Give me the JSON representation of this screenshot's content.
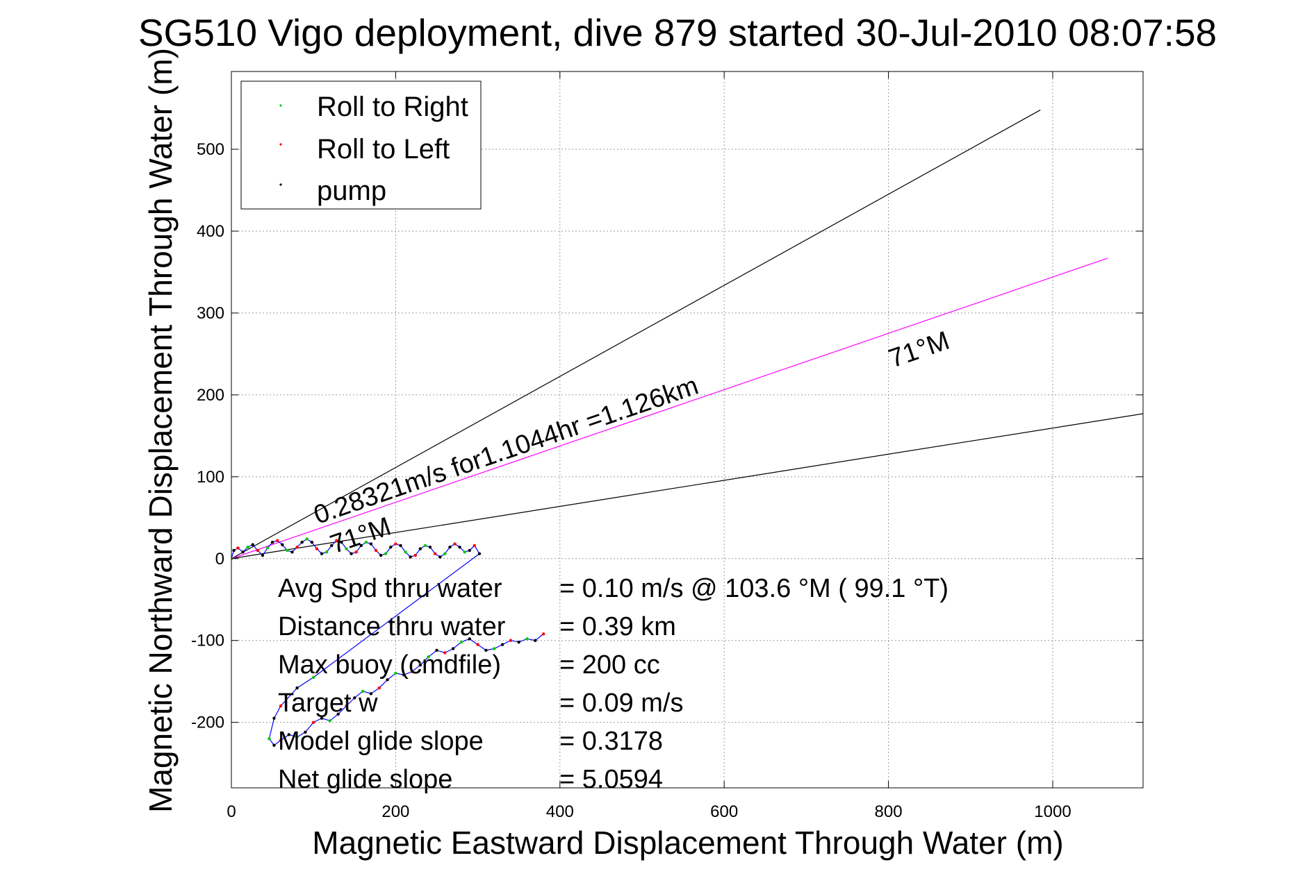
{
  "chart_data": {
    "type": "line",
    "title": "SG510 Vigo deployment, dive 879 started 30-Jul-2010 08:07:58",
    "xlabel": "Magnetic Eastward Displacement Through Water (m)",
    "ylabel": "Magnetic Northward Displacement Through Water (m)",
    "xlim": [
      0,
      1110
    ],
    "ylim": [
      -280,
      595
    ],
    "xticks": [
      0,
      200,
      400,
      600,
      800,
      1000
    ],
    "yticks": [
      -200,
      -100,
      0,
      100,
      200,
      300,
      400,
      500
    ],
    "grid": true,
    "legend": {
      "position": "top-left",
      "entries": [
        {
          "label": "Roll to Right",
          "color": "#00cc00"
        },
        {
          "label": "Roll to Left",
          "color": "#ff0000"
        },
        {
          "label": "pump",
          "color": "#000000"
        }
      ]
    },
    "reference_lines": [
      {
        "color": "#000000",
        "points": [
          [
            0,
            0
          ],
          [
            985,
            548
          ]
        ]
      },
      {
        "color": "#000000",
        "points": [
          [
            0,
            0
          ],
          [
            1110,
            177
          ]
        ]
      },
      {
        "color": "#ff00ff",
        "points": [
          [
            0,
            0
          ],
          [
            1067,
            367
          ]
        ]
      }
    ],
    "track": {
      "color": "#0000ff",
      "points": [
        [
          0,
          0
        ],
        [
          3,
          10
        ],
        [
          8,
          13
        ],
        [
          14,
          8
        ],
        [
          20,
          14
        ],
        [
          26,
          17
        ],
        [
          32,
          10
        ],
        [
          38,
          4
        ],
        [
          44,
          13
        ],
        [
          50,
          20
        ],
        [
          56,
          22
        ],
        [
          62,
          17
        ],
        [
          68,
          10
        ],
        [
          74,
          8
        ],
        [
          80,
          14
        ],
        [
          86,
          20
        ],
        [
          92,
          24
        ],
        [
          98,
          20
        ],
        [
          104,
          12
        ],
        [
          110,
          6
        ],
        [
          116,
          8
        ],
        [
          122,
          16
        ],
        [
          128,
          22
        ],
        [
          134,
          20
        ],
        [
          140,
          12
        ],
        [
          146,
          6
        ],
        [
          152,
          8
        ],
        [
          158,
          16
        ],
        [
          164,
          20
        ],
        [
          170,
          18
        ],
        [
          176,
          10
        ],
        [
          182,
          4
        ],
        [
          188,
          6
        ],
        [
          194,
          14
        ],
        [
          200,
          18
        ],
        [
          206,
          16
        ],
        [
          212,
          8
        ],
        [
          218,
          2
        ],
        [
          224,
          4
        ],
        [
          230,
          12
        ],
        [
          236,
          16
        ],
        [
          242,
          14
        ],
        [
          248,
          6
        ],
        [
          254,
          2
        ],
        [
          260,
          6
        ],
        [
          266,
          14
        ],
        [
          272,
          18
        ],
        [
          278,
          14
        ],
        [
          284,
          8
        ],
        [
          290,
          10
        ],
        [
          296,
          16
        ],
        [
          302,
          6
        ],
        [
          100,
          -145
        ],
        [
          80,
          -158
        ],
        [
          60,
          -180
        ],
        [
          52,
          -195
        ],
        [
          46,
          -220
        ],
        [
          52,
          -228
        ],
        [
          60,
          -222
        ],
        [
          70,
          -215
        ],
        [
          80,
          -218
        ],
        [
          90,
          -212
        ],
        [
          100,
          -200
        ],
        [
          110,
          -195
        ],
        [
          120,
          -198
        ],
        [
          130,
          -190
        ],
        [
          140,
          -180
        ],
        [
          150,
          -170
        ],
        [
          160,
          -162
        ],
        [
          170,
          -165
        ],
        [
          180,
          -158
        ],
        [
          190,
          -148
        ],
        [
          200,
          -140
        ],
        [
          210,
          -142
        ],
        [
          220,
          -138
        ],
        [
          230,
          -130
        ],
        [
          240,
          -120
        ],
        [
          250,
          -112
        ],
        [
          260,
          -115
        ],
        [
          270,
          -110
        ],
        [
          280,
          -102
        ],
        [
          290,
          -98
        ],
        [
          300,
          -105
        ],
        [
          310,
          -112
        ],
        [
          320,
          -110
        ],
        [
          330,
          -105
        ],
        [
          340,
          -100
        ],
        [
          350,
          -102
        ],
        [
          360,
          -98
        ],
        [
          370,
          -100
        ],
        [
          380,
          -92
        ]
      ]
    },
    "annotations": [
      {
        "text": "71°M",
        "x": 805,
        "y": 233,
        "angle": -19
      },
      {
        "text": "0.28321m/s for1.1044hr =1.126km",
        "x": 105,
        "y": 42,
        "angle": -19
      },
      {
        "text": "71°M",
        "x": 125,
        "y": 6,
        "angle": -19
      }
    ],
    "stats": [
      {
        "label": "Avg Spd thru water",
        "value": "=  0.10 m/s @ 103.6 °M ( 99.1 °T)"
      },
      {
        "label": "Distance thru water",
        "value": "=  0.39 km"
      },
      {
        "label": "Max buoy (cmdfile)",
        "value": "= 200 cc"
      },
      {
        "label": "Target w",
        "value": "= 0.09 m/s"
      },
      {
        "label": "Model glide slope",
        "value": "= 0.3178"
      },
      {
        "label": "Net glide slope",
        "value": "= 5.0594"
      }
    ]
  }
}
